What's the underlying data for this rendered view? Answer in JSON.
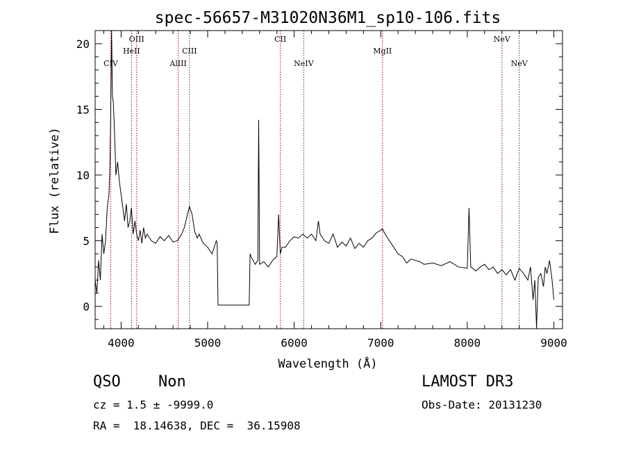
{
  "chart_data": {
    "type": "line",
    "title": "spec-56657-M31020N36M1_sp10-106.fits",
    "xlabel": "Wavelength (Å)",
    "ylabel": "Flux (relative)",
    "xlim": [
      3700,
      9100
    ],
    "ylim": [
      -1.7,
      21
    ],
    "xticks": [
      4000,
      5000,
      6000,
      7000,
      8000,
      9000
    ],
    "yticks": [
      0,
      5,
      10,
      15,
      20
    ],
    "grid": false,
    "line_color": "#000000",
    "marker_color": "#990000",
    "emission_lines": [
      {
        "name": "CIV",
        "wavelength": 3880,
        "label_row": 2
      },
      {
        "name": "HeII",
        "wavelength": 4120,
        "label_row": 1
      },
      {
        "name": "OIII",
        "wavelength": 4180,
        "label_row": 0
      },
      {
        "name": "AlIII",
        "wavelength": 4660,
        "label_row": 2
      },
      {
        "name": "CIII",
        "wavelength": 4790,
        "label_row": 1
      },
      {
        "name": "CII",
        "wavelength": 5840,
        "label_row": 0
      },
      {
        "name": "NeIV",
        "wavelength": 6110,
        "label_row": 2
      },
      {
        "name": "MgII",
        "wavelength": 7020,
        "label_row": 1
      },
      {
        "name": "NeV",
        "wavelength": 8400,
        "label_row": 0
      },
      {
        "name": "NeV",
        "wavelength": 8600,
        "label_row": 2
      }
    ],
    "series": [
      {
        "x": [
          3700,
          3720,
          3740,
          3760,
          3780,
          3800,
          3820,
          3840,
          3860,
          3870,
          3880,
          3890,
          3900,
          3910,
          3920,
          3930,
          3940,
          3960,
          3980,
          4000,
          4020,
          4040,
          4060,
          4080,
          4100,
          4120,
          4140,
          4160,
          4180,
          4200,
          4220,
          4240,
          4260,
          4280,
          4300,
          4350,
          4400,
          4450,
          4500,
          4550,
          4600,
          4650,
          4700,
          4730,
          4760,
          4790,
          4820,
          4850,
          4880,
          4900,
          4950,
          5000,
          5050,
          5100,
          5110,
          5120,
          5200,
          5300,
          5400,
          5480,
          5490,
          5500,
          5550,
          5580,
          5590,
          5600,
          5650,
          5700,
          5750,
          5800,
          5820,
          5840,
          5860,
          5900,
          5950,
          6000,
          6050,
          6100,
          6150,
          6200,
          6250,
          6280,
          6300,
          6350,
          6400,
          6450,
          6500,
          6550,
          6600,
          6650,
          6700,
          6750,
          6800,
          6850,
          6900,
          6950,
          7000,
          7020,
          7050,
          7100,
          7150,
          7200,
          7250,
          7300,
          7350,
          7400,
          7450,
          7500,
          7600,
          7700,
          7800,
          7900,
          8000,
          8020,
          8040,
          8060,
          8100,
          8150,
          8200,
          8250,
          8300,
          8350,
          8400,
          8450,
          8500,
          8550,
          8600,
          8650,
          8700,
          8730,
          8760,
          8780,
          8800,
          8820,
          8850,
          8880,
          8900,
          8920,
          8950,
          8980,
          9000
        ],
        "y": [
          2.0,
          1.0,
          3.5,
          2.0,
          5.5,
          4.0,
          5.0,
          7.5,
          8.5,
          10.5,
          14.5,
          21.0,
          16.0,
          15.5,
          14.0,
          12.0,
          10.0,
          11.0,
          9.5,
          8.5,
          7.5,
          6.5,
          7.8,
          6.0,
          6.5,
          7.5,
          5.5,
          6.5,
          5.5,
          5.0,
          5.8,
          4.8,
          6.0,
          5.2,
          5.5,
          5.0,
          4.8,
          5.3,
          5.0,
          5.4,
          4.9,
          5.0,
          5.5,
          6.0,
          6.8,
          7.6,
          7.0,
          5.7,
          5.2,
          5.5,
          4.8,
          4.5,
          4.0,
          5.0,
          4.8,
          0.1,
          0.1,
          0.1,
          0.1,
          0.1,
          4.0,
          3.8,
          3.2,
          3.5,
          14.2,
          3.2,
          3.4,
          3.0,
          3.5,
          3.8,
          7.0,
          4.0,
          4.5,
          4.5,
          5.0,
          5.3,
          5.2,
          5.5,
          5.2,
          5.5,
          5.0,
          6.5,
          5.5,
          5.0,
          4.8,
          5.5,
          4.5,
          4.9,
          4.6,
          5.2,
          4.4,
          4.8,
          4.5,
          5.0,
          5.2,
          5.6,
          5.8,
          5.9,
          5.5,
          5.0,
          4.5,
          4.0,
          3.8,
          3.3,
          3.6,
          3.5,
          3.4,
          3.2,
          3.3,
          3.1,
          3.4,
          3.0,
          2.9,
          7.5,
          3.0,
          2.9,
          2.7,
          3.0,
          3.2,
          2.8,
          3.0,
          2.5,
          2.8,
          2.4,
          2.8,
          2.0,
          2.9,
          2.5,
          2.0,
          3.0,
          0.5,
          2.0,
          -1.6,
          2.2,
          2.5,
          1.5,
          3.0,
          2.5,
          3.5,
          2.0,
          0.5
        ]
      }
    ]
  },
  "info": {
    "class": "QSO",
    "subclass": "Non",
    "survey": "LAMOST DR3",
    "cz": "cz = 1.5 ± -9999.0",
    "obs_date": "Obs-Date: 20131230",
    "coords": "RA =  18.14638, DEC =  36.15908"
  }
}
